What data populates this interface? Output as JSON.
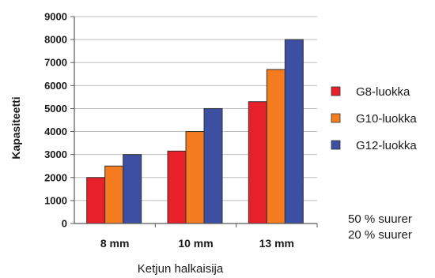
{
  "chart_data": {
    "type": "bar",
    "title": "",
    "xlabel": "Ketjun halkaisija",
    "ylabel": "Kapasiteetti",
    "categories": [
      "8 mm",
      "10 mm",
      "13 mm"
    ],
    "ylim": [
      0,
      9000
    ],
    "yticks": [
      "0",
      "1000",
      "2000",
      "3000",
      "4000",
      "5000",
      "6000",
      "7000",
      "8000",
      "9000"
    ],
    "grid": true,
    "legend_position": "right",
    "series": [
      {
        "name": "G8-luokka",
        "color": "#e8202a",
        "values": [
          2000,
          3150,
          5300
        ]
      },
      {
        "name": "G10-luokka",
        "color": "#f47b20",
        "values": [
          2500,
          4000,
          6700
        ]
      },
      {
        "name": "G12-luokka",
        "color": "#3d4fa3",
        "values": [
          3000,
          5000,
          8000
        ]
      }
    ],
    "annotations": [
      "50 % suurer",
      "20 % suurer"
    ]
  },
  "colors": {
    "grid": "#bfbfbf",
    "axis": "#595959",
    "bar_stroke": "#333333"
  }
}
